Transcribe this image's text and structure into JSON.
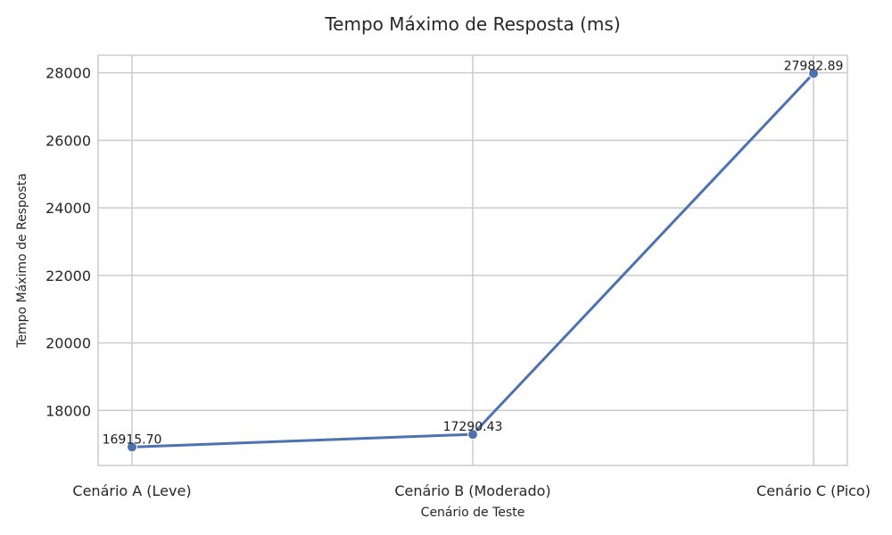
{
  "chart_data": {
    "type": "line",
    "title": "Tempo Máximo de Resposta (ms)",
    "xlabel": "Cenário de Teste",
    "ylabel": "Tempo Máximo de Resposta",
    "categories": [
      "Cenário A (Leve)",
      "Cenário B (Moderado)",
      "Cenário C (Pico)"
    ],
    "series": [
      {
        "values": [
          16915.7,
          17290.43,
          27982.89
        ]
      }
    ],
    "data_labels": [
      "16915.70",
      "17290.43",
      "27982.89"
    ],
    "yticks": [
      18000,
      20000,
      22000,
      24000,
      26000,
      28000
    ],
    "ylim": [
      16370,
      28520
    ],
    "grid": true,
    "colors": {
      "line": "#4c72b0",
      "grid": "#cccccc",
      "text": "#262626"
    }
  }
}
